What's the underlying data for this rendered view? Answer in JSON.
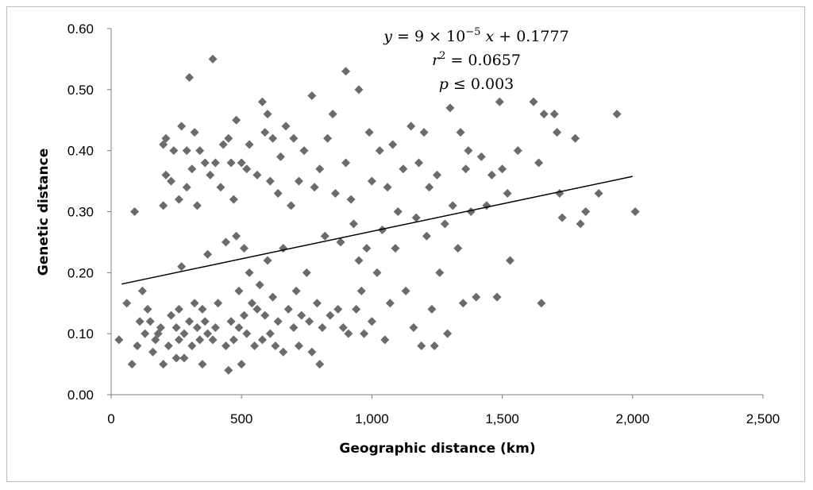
{
  "chart_data": {
    "type": "scatter",
    "title": "",
    "xlabel": "Geographic distance (km)",
    "ylabel": "Genetic distance",
    "xlim": [
      0,
      2500
    ],
    "ylim": [
      0,
      0.6
    ],
    "x_ticks": [
      0,
      500,
      1000,
      1500,
      2000,
      2500
    ],
    "x_tick_labels": [
      "0",
      "500",
      "1,000",
      "1,500",
      "2,000",
      "2,500"
    ],
    "y_ticks": [
      0,
      0.1,
      0.2,
      0.3,
      0.4,
      0.5,
      0.6
    ],
    "y_tick_labels": [
      "0.00",
      "0.10",
      "0.20",
      "0.30",
      "0.40",
      "0.50",
      "0.60"
    ],
    "grid": false,
    "marker": "diamond",
    "marker_color": "#6b6b6b",
    "trendline": {
      "slope": 9e-05,
      "intercept": 0.1777,
      "x_range": [
        40,
        2000
      ],
      "color": "#000000"
    },
    "annotation": {
      "line1_lhs": "y",
      "line1_rhs": " = 9 × 10",
      "line1_exp": "−5",
      "line1_var": " x",
      "line1_tail": " + 0.1777",
      "line2_var": "r",
      "line2_exp": "2",
      "line2_tail": " = 0.0657",
      "line3_var": "p",
      "line3_tail": " ≤ 0.003"
    },
    "points": [
      [
        30,
        0.09
      ],
      [
        60,
        0.15
      ],
      [
        80,
        0.05
      ],
      [
        90,
        0.3
      ],
      [
        100,
        0.08
      ],
      [
        110,
        0.12
      ],
      [
        120,
        0.17
      ],
      [
        130,
        0.1
      ],
      [
        140,
        0.14
      ],
      [
        150,
        0.12
      ],
      [
        160,
        0.07
      ],
      [
        170,
        0.09
      ],
      [
        180,
        0.1
      ],
      [
        190,
        0.11
      ],
      [
        200,
        0.05
      ],
      [
        200,
        0.31
      ],
      [
        200,
        0.41
      ],
      [
        210,
        0.36
      ],
      [
        210,
        0.42
      ],
      [
        220,
        0.08
      ],
      [
        230,
        0.13
      ],
      [
        230,
        0.35
      ],
      [
        240,
        0.4
      ],
      [
        250,
        0.11
      ],
      [
        250,
        0.06
      ],
      [
        260,
        0.09
      ],
      [
        260,
        0.32
      ],
      [
        260,
        0.14
      ],
      [
        270,
        0.21
      ],
      [
        270,
        0.44
      ],
      [
        280,
        0.1
      ],
      [
        280,
        0.06
      ],
      [
        290,
        0.4
      ],
      [
        290,
        0.34
      ],
      [
        300,
        0.52
      ],
      [
        300,
        0.12
      ],
      [
        310,
        0.08
      ],
      [
        310,
        0.37
      ],
      [
        320,
        0.15
      ],
      [
        320,
        0.43
      ],
      [
        330,
        0.31
      ],
      [
        330,
        0.11
      ],
      [
        340,
        0.09
      ],
      [
        340,
        0.4
      ],
      [
        350,
        0.14
      ],
      [
        350,
        0.05
      ],
      [
        360,
        0.12
      ],
      [
        360,
        0.38
      ],
      [
        370,
        0.23
      ],
      [
        370,
        0.1
      ],
      [
        380,
        0.36
      ],
      [
        390,
        0.55
      ],
      [
        390,
        0.09
      ],
      [
        400,
        0.38
      ],
      [
        400,
        0.11
      ],
      [
        410,
        0.15
      ],
      [
        420,
        0.34
      ],
      [
        430,
        0.41
      ],
      [
        440,
        0.25
      ],
      [
        440,
        0.08
      ],
      [
        450,
        0.42
      ],
      [
        450,
        0.04
      ],
      [
        460,
        0.12
      ],
      [
        460,
        0.38
      ],
      [
        470,
        0.32
      ],
      [
        470,
        0.09
      ],
      [
        480,
        0.26
      ],
      [
        480,
        0.45
      ],
      [
        490,
        0.17
      ],
      [
        490,
        0.11
      ],
      [
        500,
        0.38
      ],
      [
        500,
        0.05
      ],
      [
        510,
        0.24
      ],
      [
        510,
        0.13
      ],
      [
        520,
        0.37
      ],
      [
        520,
        0.1
      ],
      [
        530,
        0.2
      ],
      [
        530,
        0.41
      ],
      [
        540,
        0.15
      ],
      [
        550,
        0.08
      ],
      [
        560,
        0.36
      ],
      [
        560,
        0.14
      ],
      [
        570,
        0.18
      ],
      [
        580,
        0.48
      ],
      [
        580,
        0.09
      ],
      [
        590,
        0.43
      ],
      [
        590,
        0.13
      ],
      [
        600,
        0.22
      ],
      [
        600,
        0.46
      ],
      [
        610,
        0.1
      ],
      [
        610,
        0.35
      ],
      [
        620,
        0.16
      ],
      [
        620,
        0.42
      ],
      [
        630,
        0.08
      ],
      [
        640,
        0.33
      ],
      [
        640,
        0.12
      ],
      [
        650,
        0.39
      ],
      [
        660,
        0.07
      ],
      [
        660,
        0.24
      ],
      [
        670,
        0.44
      ],
      [
        680,
        0.14
      ],
      [
        690,
        0.31
      ],
      [
        700,
        0.11
      ],
      [
        700,
        0.42
      ],
      [
        710,
        0.17
      ],
      [
        720,
        0.35
      ],
      [
        720,
        0.08
      ],
      [
        730,
        0.13
      ],
      [
        740,
        0.4
      ],
      [
        750,
        0.2
      ],
      [
        760,
        0.12
      ],
      [
        770,
        0.49
      ],
      [
        770,
        0.07
      ],
      [
        780,
        0.34
      ],
      [
        790,
        0.15
      ],
      [
        800,
        0.37
      ],
      [
        800,
        0.05
      ],
      [
        810,
        0.11
      ],
      [
        820,
        0.26
      ],
      [
        830,
        0.42
      ],
      [
        840,
        0.13
      ],
      [
        850,
        0.46
      ],
      [
        860,
        0.33
      ],
      [
        870,
        0.14
      ],
      [
        880,
        0.25
      ],
      [
        890,
        0.11
      ],
      [
        900,
        0.53
      ],
      [
        900,
        0.38
      ],
      [
        910,
        0.1
      ],
      [
        920,
        0.32
      ],
      [
        930,
        0.28
      ],
      [
        940,
        0.14
      ],
      [
        950,
        0.5
      ],
      [
        950,
        0.22
      ],
      [
        960,
        0.17
      ],
      [
        970,
        0.1
      ],
      [
        980,
        0.24
      ],
      [
        990,
        0.43
      ],
      [
        1000,
        0.35
      ],
      [
        1000,
        0.12
      ],
      [
        1020,
        0.2
      ],
      [
        1030,
        0.4
      ],
      [
        1040,
        0.27
      ],
      [
        1050,
        0.09
      ],
      [
        1060,
        0.34
      ],
      [
        1070,
        0.15
      ],
      [
        1080,
        0.41
      ],
      [
        1090,
        0.24
      ],
      [
        1100,
        0.3
      ],
      [
        1120,
        0.37
      ],
      [
        1130,
        0.17
      ],
      [
        1150,
        0.44
      ],
      [
        1160,
        0.11
      ],
      [
        1170,
        0.29
      ],
      [
        1180,
        0.38
      ],
      [
        1190,
        0.08
      ],
      [
        1200,
        0.43
      ],
      [
        1210,
        0.26
      ],
      [
        1220,
        0.34
      ],
      [
        1230,
        0.14
      ],
      [
        1240,
        0.08
      ],
      [
        1250,
        0.36
      ],
      [
        1260,
        0.2
      ],
      [
        1280,
        0.28
      ],
      [
        1290,
        0.1
      ],
      [
        1300,
        0.47
      ],
      [
        1310,
        0.31
      ],
      [
        1330,
        0.24
      ],
      [
        1340,
        0.43
      ],
      [
        1350,
        0.15
      ],
      [
        1360,
        0.37
      ],
      [
        1370,
        0.4
      ],
      [
        1380,
        0.3
      ],
      [
        1400,
        0.16
      ],
      [
        1420,
        0.39
      ],
      [
        1440,
        0.31
      ],
      [
        1460,
        0.36
      ],
      [
        1480,
        0.16
      ],
      [
        1490,
        0.48
      ],
      [
        1500,
        0.37
      ],
      [
        1520,
        0.33
      ],
      [
        1530,
        0.22
      ],
      [
        1560,
        0.4
      ],
      [
        1620,
        0.48
      ],
      [
        1640,
        0.38
      ],
      [
        1650,
        0.15
      ],
      [
        1660,
        0.46
      ],
      [
        1700,
        0.46
      ],
      [
        1710,
        0.43
      ],
      [
        1720,
        0.33
      ],
      [
        1730,
        0.29
      ],
      [
        1780,
        0.42
      ],
      [
        1800,
        0.28
      ],
      [
        1820,
        0.3
      ],
      [
        1870,
        0.33
      ],
      [
        1940,
        0.46
      ],
      [
        2010,
        0.3
      ]
    ]
  }
}
